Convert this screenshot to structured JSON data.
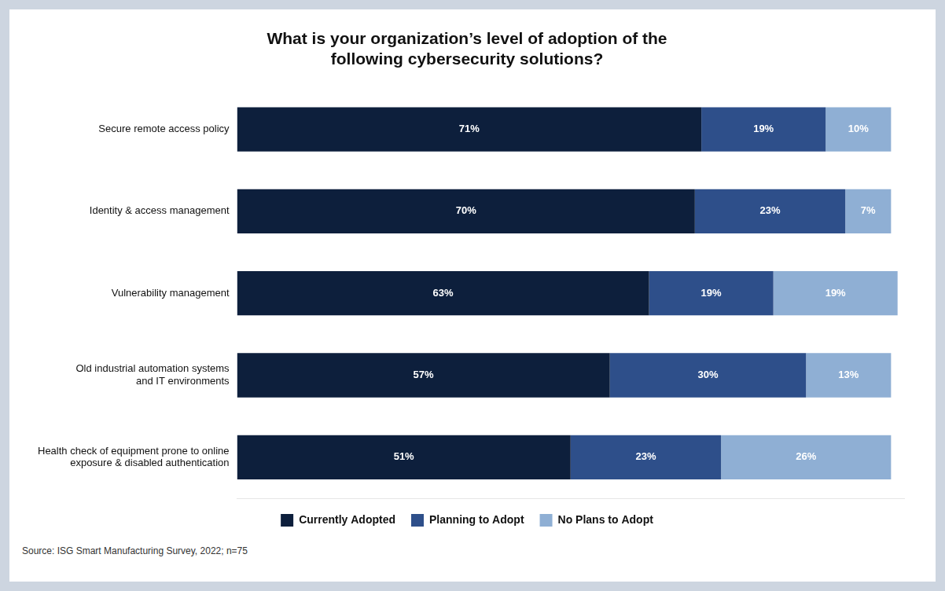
{
  "chart_data": {
    "type": "bar",
    "orientation": "horizontal",
    "stacked": true,
    "title": "What is your organization’s level of adoption of the\nfollowing cybersecurity solutions?",
    "categories": [
      "Health check of equipment prone to online\nexposure & disabled authentication",
      "Old industrial automation systems\nand IT environments",
      "Vulnerability management",
      "Identity & access management",
      "Secure remote access policy"
    ],
    "series": [
      {
        "name": "Currently Adopted",
        "color": "#0d1f3c",
        "values": [
          51,
          57,
          63,
          70,
          71
        ],
        "value_labels": [
          "51%",
          "57%",
          "63%",
          "70%",
          "71%"
        ]
      },
      {
        "name": "Planning to Adopt",
        "color": "#2e4f8a",
        "values": [
          23,
          30,
          19,
          23,
          19
        ],
        "value_labels": [
          "23%",
          "30%",
          "19%",
          "23%",
          "19%"
        ]
      },
      {
        "name": "No Plans to Adopt",
        "color": "#8fafd4",
        "values": [
          26,
          13,
          19,
          7,
          10
        ],
        "value_labels": [
          "26%",
          "13%",
          "19%",
          "7%",
          "10%"
        ]
      }
    ],
    "xlim": [
      0,
      102
    ],
    "xticks": [],
    "grid": false,
    "legend": "bottom",
    "data_labels": true,
    "tick_labels": "y",
    "annotations": [
      "Source: ISG Smart Manufacturing Survey, 2022; n=75"
    ]
  }
}
